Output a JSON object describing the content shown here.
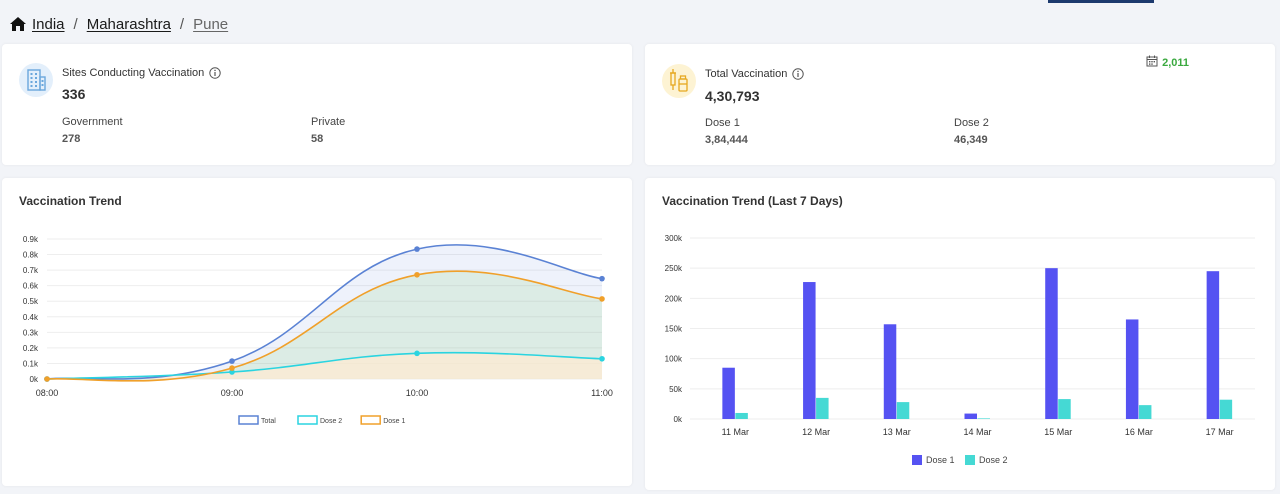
{
  "breadcrumb": {
    "country": "India",
    "state": "Maharashtra",
    "district": "Pune"
  },
  "sites": {
    "label": "Sites Conducting Vaccination",
    "total": "336",
    "government_label": "Government",
    "government_value": "278",
    "private_label": "Private",
    "private_value": "58"
  },
  "vaccination": {
    "label": "Total Vaccination",
    "total": "4,30,793",
    "dose1_label": "Dose 1",
    "dose1_value": "3,84,444",
    "dose2_label": "Dose 2",
    "dose2_value": "46,349",
    "today_count": "2,011"
  },
  "colors": {
    "total": "#5a82d4",
    "dose2": "#2ad4e0",
    "dose1": "#f0a02a",
    "bar_dose1": "#5552f2",
    "bar_dose2": "#45d9d4",
    "green": "#3aa93f"
  },
  "trend": {
    "title": "Vaccination Trend"
  },
  "week": {
    "title": "Vaccination Trend (Last 7 Days)"
  },
  "chart_data": [
    {
      "type": "area",
      "title": "Vaccination Trend",
      "categories": [
        "08:00",
        "09:00",
        "10:00",
        "11:00"
      ],
      "ylim": [
        0,
        900
      ],
      "yticks": [
        0,
        100,
        200,
        300,
        400,
        500,
        600,
        700,
        800,
        900
      ],
      "ytick_labels": [
        "0k",
        "0.1k",
        "0.2k",
        "0.3k",
        "0.4k",
        "0.5k",
        "0.6k",
        "0.7k",
        "0.8k",
        "0.9k"
      ],
      "series": [
        {
          "name": "Total",
          "values": [
            0,
            115,
            835,
            645
          ]
        },
        {
          "name": "Dose 2",
          "values": [
            0,
            45,
            165,
            130
          ]
        },
        {
          "name": "Dose 1",
          "values": [
            0,
            70,
            670,
            515
          ]
        }
      ],
      "legend": "bottom"
    },
    {
      "type": "bar",
      "title": "Vaccination Trend (Last 7 Days)",
      "categories": [
        "11 Mar",
        "12 Mar",
        "13 Mar",
        "14 Mar",
        "15 Mar",
        "16 Mar",
        "17 Mar"
      ],
      "ylim": [
        0,
        300000
      ],
      "yticks": [
        0,
        50000,
        100000,
        150000,
        200000,
        250000,
        300000
      ],
      "ytick_labels": [
        "0k",
        "50k",
        "100k",
        "150k",
        "200k",
        "250k",
        "300k"
      ],
      "series": [
        {
          "name": "Dose 1",
          "values": [
            85000,
            227000,
            157000,
            9000,
            250000,
            165000,
            245000
          ]
        },
        {
          "name": "Dose 2",
          "values": [
            10000,
            35000,
            28000,
            1000,
            33000,
            23000,
            32000
          ]
        }
      ],
      "legend": "bottom"
    }
  ]
}
